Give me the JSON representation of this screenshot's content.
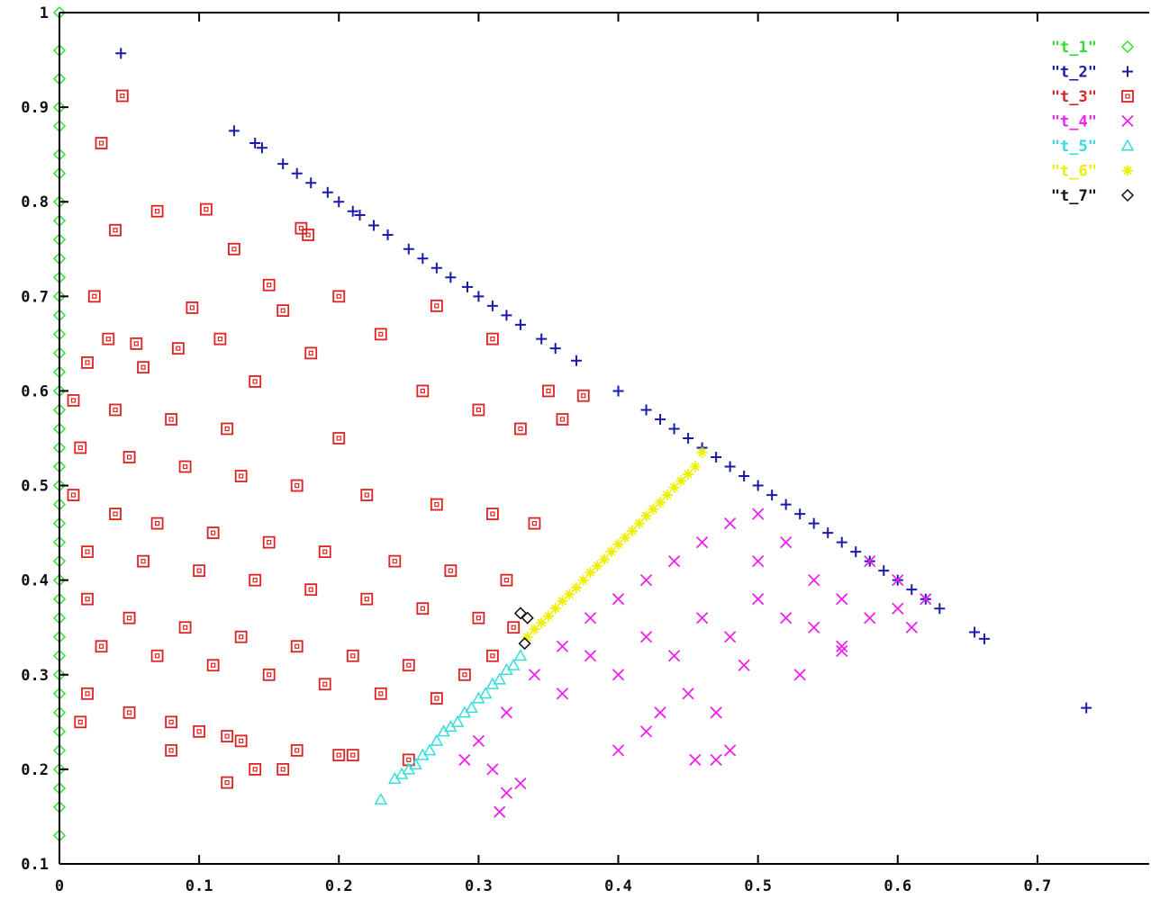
{
  "chart_data": {
    "type": "scatter",
    "title": "",
    "xlabel": "",
    "ylabel": "",
    "xlim": [
      0,
      0.78
    ],
    "ylim": [
      0.1,
      1.0
    ],
    "x_ticks": [
      {
        "value": 0,
        "label": "0"
      },
      {
        "value": 0.1,
        "label": "0.1"
      },
      {
        "value": 0.2,
        "label": "0.2"
      },
      {
        "value": 0.3,
        "label": "0.3"
      },
      {
        "value": 0.4,
        "label": "0.4"
      },
      {
        "value": 0.5,
        "label": "0.5"
      },
      {
        "value": 0.6,
        "label": "0.6"
      },
      {
        "value": 0.7,
        "label": "0.7"
      }
    ],
    "y_ticks": [
      {
        "value": 0.1,
        "label": "0.1"
      },
      {
        "value": 0.2,
        "label": "0.2"
      },
      {
        "value": 0.3,
        "label": "0.3"
      },
      {
        "value": 0.4,
        "label": "0.4"
      },
      {
        "value": 0.5,
        "label": "0.5"
      },
      {
        "value": 0.6,
        "label": "0.6"
      },
      {
        "value": 0.7,
        "label": "0.7"
      },
      {
        "value": 0.8,
        "label": "0.8"
      },
      {
        "value": 0.9,
        "label": "0.9"
      },
      {
        "value": 1.0,
        "label": "1"
      }
    ],
    "grid": false,
    "legend_position": "top-right",
    "series": [
      {
        "name": "\"t_1\"",
        "marker": "diamond",
        "color": "#33dd33",
        "points": [
          [
            0,
            1.0
          ],
          [
            0,
            0.96
          ],
          [
            0,
            0.93
          ],
          [
            0,
            0.9
          ],
          [
            0,
            0.88
          ],
          [
            0,
            0.85
          ],
          [
            0,
            0.83
          ],
          [
            0,
            0.8
          ],
          [
            0,
            0.78
          ],
          [
            0,
            0.76
          ],
          [
            0,
            0.74
          ],
          [
            0,
            0.72
          ],
          [
            0,
            0.7
          ],
          [
            0,
            0.68
          ],
          [
            0,
            0.66
          ],
          [
            0,
            0.64
          ],
          [
            0,
            0.62
          ],
          [
            0,
            0.6
          ],
          [
            0,
            0.58
          ],
          [
            0,
            0.56
          ],
          [
            0,
            0.54
          ],
          [
            0,
            0.52
          ],
          [
            0,
            0.5
          ],
          [
            0,
            0.48
          ],
          [
            0,
            0.46
          ],
          [
            0,
            0.44
          ],
          [
            0,
            0.42
          ],
          [
            0,
            0.4
          ],
          [
            0,
            0.38
          ],
          [
            0,
            0.36
          ],
          [
            0,
            0.34
          ],
          [
            0,
            0.32
          ],
          [
            0,
            0.3
          ],
          [
            0,
            0.28
          ],
          [
            0,
            0.26
          ],
          [
            0,
            0.24
          ],
          [
            0,
            0.22
          ],
          [
            0,
            0.2
          ],
          [
            0,
            0.18
          ],
          [
            0,
            0.16
          ],
          [
            0,
            0.13
          ]
        ]
      },
      {
        "name": "\"t_2\"",
        "marker": "plus",
        "color": "#1a1aaa",
        "points": [
          [
            0.044,
            0.957
          ],
          [
            0.125,
            0.875
          ],
          [
            0.14,
            0.862
          ],
          [
            0.145,
            0.857
          ],
          [
            0.16,
            0.84
          ],
          [
            0.17,
            0.83
          ],
          [
            0.18,
            0.82
          ],
          [
            0.192,
            0.81
          ],
          [
            0.2,
            0.8
          ],
          [
            0.21,
            0.79
          ],
          [
            0.215,
            0.786
          ],
          [
            0.225,
            0.775
          ],
          [
            0.235,
            0.765
          ],
          [
            0.25,
            0.75
          ],
          [
            0.26,
            0.74
          ],
          [
            0.27,
            0.73
          ],
          [
            0.28,
            0.72
          ],
          [
            0.292,
            0.71
          ],
          [
            0.3,
            0.7
          ],
          [
            0.31,
            0.69
          ],
          [
            0.32,
            0.68
          ],
          [
            0.33,
            0.67
          ],
          [
            0.345,
            0.655
          ],
          [
            0.355,
            0.645
          ],
          [
            0.37,
            0.632
          ],
          [
            0.4,
            0.6
          ],
          [
            0.42,
            0.58
          ],
          [
            0.43,
            0.57
          ],
          [
            0.44,
            0.56
          ],
          [
            0.45,
            0.55
          ],
          [
            0.46,
            0.54
          ],
          [
            0.47,
            0.53
          ],
          [
            0.48,
            0.52
          ],
          [
            0.49,
            0.51
          ],
          [
            0.5,
            0.5
          ],
          [
            0.51,
            0.49
          ],
          [
            0.52,
            0.48
          ],
          [
            0.53,
            0.47
          ],
          [
            0.54,
            0.46
          ],
          [
            0.55,
            0.45
          ],
          [
            0.56,
            0.44
          ],
          [
            0.57,
            0.43
          ],
          [
            0.58,
            0.42
          ],
          [
            0.59,
            0.41
          ],
          [
            0.6,
            0.4
          ],
          [
            0.61,
            0.39
          ],
          [
            0.62,
            0.38
          ],
          [
            0.63,
            0.37
          ],
          [
            0.655,
            0.345
          ],
          [
            0.662,
            0.338
          ],
          [
            0.735,
            0.265
          ]
        ]
      },
      {
        "name": "\"t_3\"",
        "marker": "box",
        "color": "#dd2222",
        "points": [
          [
            0.045,
            0.912
          ],
          [
            0.03,
            0.862
          ],
          [
            0.07,
            0.79
          ],
          [
            0.105,
            0.792
          ],
          [
            0.04,
            0.77
          ],
          [
            0.125,
            0.75
          ],
          [
            0.173,
            0.772
          ],
          [
            0.178,
            0.765
          ],
          [
            0.025,
            0.7
          ],
          [
            0.15,
            0.712
          ],
          [
            0.2,
            0.7
          ],
          [
            0.27,
            0.69
          ],
          [
            0.095,
            0.688
          ],
          [
            0.16,
            0.685
          ],
          [
            0.23,
            0.66
          ],
          [
            0.31,
            0.655
          ],
          [
            0.035,
            0.655
          ],
          [
            0.115,
            0.655
          ],
          [
            0.055,
            0.65
          ],
          [
            0.085,
            0.645
          ],
          [
            0.18,
            0.64
          ],
          [
            0.02,
            0.63
          ],
          [
            0.06,
            0.625
          ],
          [
            0.14,
            0.61
          ],
          [
            0.26,
            0.6
          ],
          [
            0.35,
            0.6
          ],
          [
            0.375,
            0.595
          ],
          [
            0.01,
            0.59
          ],
          [
            0.04,
            0.58
          ],
          [
            0.08,
            0.57
          ],
          [
            0.12,
            0.56
          ],
          [
            0.2,
            0.55
          ],
          [
            0.3,
            0.58
          ],
          [
            0.33,
            0.56
          ],
          [
            0.36,
            0.57
          ],
          [
            0.015,
            0.54
          ],
          [
            0.05,
            0.53
          ],
          [
            0.09,
            0.52
          ],
          [
            0.13,
            0.51
          ],
          [
            0.17,
            0.5
          ],
          [
            0.22,
            0.49
          ],
          [
            0.27,
            0.48
          ],
          [
            0.31,
            0.47
          ],
          [
            0.34,
            0.46
          ],
          [
            0.01,
            0.49
          ],
          [
            0.04,
            0.47
          ],
          [
            0.07,
            0.46
          ],
          [
            0.11,
            0.45
          ],
          [
            0.15,
            0.44
          ],
          [
            0.19,
            0.43
          ],
          [
            0.24,
            0.42
          ],
          [
            0.28,
            0.41
          ],
          [
            0.32,
            0.4
          ],
          [
            0.02,
            0.43
          ],
          [
            0.06,
            0.42
          ],
          [
            0.1,
            0.41
          ],
          [
            0.14,
            0.4
          ],
          [
            0.18,
            0.39
          ],
          [
            0.22,
            0.38
          ],
          [
            0.26,
            0.37
          ],
          [
            0.3,
            0.36
          ],
          [
            0.325,
            0.35
          ],
          [
            0.02,
            0.38
          ],
          [
            0.05,
            0.36
          ],
          [
            0.09,
            0.35
          ],
          [
            0.13,
            0.34
          ],
          [
            0.17,
            0.33
          ],
          [
            0.21,
            0.32
          ],
          [
            0.25,
            0.31
          ],
          [
            0.29,
            0.3
          ],
          [
            0.31,
            0.32
          ],
          [
            0.03,
            0.33
          ],
          [
            0.07,
            0.32
          ],
          [
            0.11,
            0.31
          ],
          [
            0.15,
            0.3
          ],
          [
            0.19,
            0.29
          ],
          [
            0.23,
            0.28
          ],
          [
            0.27,
            0.275
          ],
          [
            0.02,
            0.28
          ],
          [
            0.05,
            0.26
          ],
          [
            0.08,
            0.25
          ],
          [
            0.1,
            0.24
          ],
          [
            0.13,
            0.23
          ],
          [
            0.17,
            0.22
          ],
          [
            0.21,
            0.215
          ],
          [
            0.25,
            0.21
          ],
          [
            0.12,
            0.235
          ],
          [
            0.2,
            0.215
          ],
          [
            0.08,
            0.22
          ],
          [
            0.14,
            0.2
          ],
          [
            0.16,
            0.2
          ],
          [
            0.12,
            0.186
          ],
          [
            0.015,
            0.25
          ]
        ]
      },
      {
        "name": "\"t_4\"",
        "marker": "cross",
        "color": "#ee22ee",
        "points": [
          [
            0.32,
            0.26
          ],
          [
            0.34,
            0.3
          ],
          [
            0.36,
            0.28
          ],
          [
            0.38,
            0.32
          ],
          [
            0.4,
            0.3
          ],
          [
            0.42,
            0.34
          ],
          [
            0.44,
            0.32
          ],
          [
            0.46,
            0.36
          ],
          [
            0.48,
            0.34
          ],
          [
            0.5,
            0.38
          ],
          [
            0.52,
            0.36
          ],
          [
            0.54,
            0.4
          ],
          [
            0.56,
            0.38
          ],
          [
            0.58,
            0.42
          ],
          [
            0.6,
            0.4
          ],
          [
            0.38,
            0.36
          ],
          [
            0.4,
            0.38
          ],
          [
            0.42,
            0.4
          ],
          [
            0.44,
            0.42
          ],
          [
            0.46,
            0.44
          ],
          [
            0.48,
            0.46
          ],
          [
            0.5,
            0.47
          ],
          [
            0.36,
            0.33
          ],
          [
            0.5,
            0.42
          ],
          [
            0.52,
            0.44
          ],
          [
            0.54,
            0.35
          ],
          [
            0.56,
            0.33
          ],
          [
            0.45,
            0.28
          ],
          [
            0.47,
            0.26
          ],
          [
            0.43,
            0.26
          ],
          [
            0.58,
            0.36
          ],
          [
            0.6,
            0.37
          ],
          [
            0.62,
            0.38
          ],
          [
            0.61,
            0.35
          ],
          [
            0.3,
            0.23
          ],
          [
            0.31,
            0.2
          ],
          [
            0.32,
            0.175
          ],
          [
            0.33,
            0.185
          ],
          [
            0.315,
            0.155
          ],
          [
            0.29,
            0.21
          ],
          [
            0.47,
            0.21
          ],
          [
            0.455,
            0.21
          ],
          [
            0.53,
            0.3
          ],
          [
            0.56,
            0.325
          ],
          [
            0.48,
            0.22
          ],
          [
            0.49,
            0.31
          ],
          [
            0.4,
            0.22
          ],
          [
            0.42,
            0.24
          ]
        ]
      },
      {
        "name": "\"t_5\"",
        "marker": "triangle",
        "color": "#33dddd",
        "points": [
          [
            0.23,
            0.168
          ],
          [
            0.24,
            0.19
          ],
          [
            0.245,
            0.195
          ],
          [
            0.25,
            0.2
          ],
          [
            0.26,
            0.215
          ],
          [
            0.27,
            0.23
          ],
          [
            0.28,
            0.245
          ],
          [
            0.29,
            0.26
          ],
          [
            0.3,
            0.275
          ],
          [
            0.31,
            0.29
          ],
          [
            0.32,
            0.305
          ],
          [
            0.33,
            0.32
          ],
          [
            0.255,
            0.205
          ],
          [
            0.265,
            0.22
          ],
          [
            0.275,
            0.24
          ],
          [
            0.285,
            0.25
          ],
          [
            0.295,
            0.265
          ],
          [
            0.305,
            0.28
          ],
          [
            0.315,
            0.295
          ],
          [
            0.325,
            0.31
          ]
        ]
      },
      {
        "name": "\"t_6\"",
        "marker": "star",
        "color": "#eeee00",
        "points": [
          [
            0.335,
            0.34
          ],
          [
            0.345,
            0.355
          ],
          [
            0.355,
            0.37
          ],
          [
            0.365,
            0.385
          ],
          [
            0.375,
            0.4
          ],
          [
            0.385,
            0.415
          ],
          [
            0.395,
            0.43
          ],
          [
            0.405,
            0.445
          ],
          [
            0.415,
            0.46
          ],
          [
            0.425,
            0.475
          ],
          [
            0.435,
            0.49
          ],
          [
            0.445,
            0.505
          ],
          [
            0.455,
            0.52
          ],
          [
            0.46,
            0.535
          ],
          [
            0.34,
            0.348
          ],
          [
            0.35,
            0.362
          ],
          [
            0.36,
            0.378
          ],
          [
            0.37,
            0.392
          ],
          [
            0.38,
            0.408
          ],
          [
            0.39,
            0.422
          ],
          [
            0.4,
            0.438
          ],
          [
            0.41,
            0.452
          ],
          [
            0.42,
            0.468
          ],
          [
            0.43,
            0.482
          ],
          [
            0.44,
            0.498
          ],
          [
            0.45,
            0.512
          ]
        ]
      },
      {
        "name": "\"t_7\"",
        "marker": "diamond",
        "color": "#111111",
        "points": [
          [
            0.333,
            0.333
          ],
          [
            0.335,
            0.36
          ],
          [
            0.33,
            0.365
          ]
        ]
      }
    ]
  }
}
